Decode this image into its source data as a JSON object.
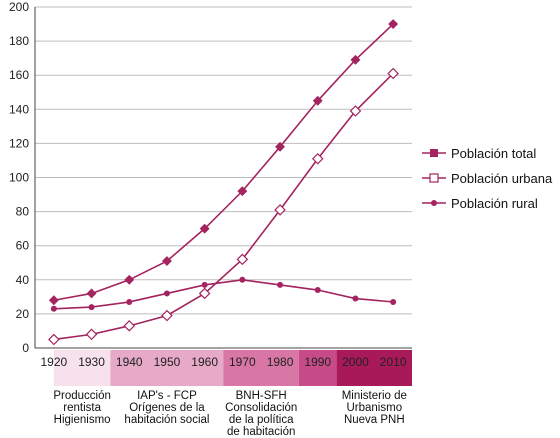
{
  "colors": {
    "series": "#a3245e",
    "bands": [
      "#f7e1ec",
      "#e6a9c7",
      "#d877a6",
      "#c84b89",
      "#a8195a"
    ]
  },
  "chart_data": {
    "type": "line",
    "x": [
      1920,
      1930,
      1940,
      1950,
      1960,
      1970,
      1980,
      1990,
      2000,
      2010
    ],
    "x_tick_labels": [
      "1920",
      "1930",
      "1940",
      "1950",
      "1960",
      "1970",
      "1980",
      "1990",
      "2000",
      "2010"
    ],
    "ylim": [
      0,
      200
    ],
    "y_ticks": [
      0,
      20,
      40,
      60,
      80,
      100,
      120,
      140,
      160,
      180,
      200
    ],
    "grid": "horizontal",
    "legend_position": "right",
    "series": [
      {
        "name": "Población total",
        "marker": "filled-square",
        "values": [
          28,
          32,
          40,
          51,
          70,
          92,
          118,
          145,
          169,
          190
        ]
      },
      {
        "name": "Población urbana",
        "marker": "hollow-square",
        "values": [
          5,
          8,
          13,
          19,
          32,
          52,
          81,
          111,
          139,
          161
        ]
      },
      {
        "name": "Población rural",
        "marker": "filled-dot",
        "values": [
          23,
          24,
          27,
          32,
          37,
          40,
          37,
          34,
          29,
          27
        ]
      }
    ],
    "periods": [
      {
        "lines": [
          "Producción",
          "rentista",
          "Higienismo"
        ],
        "from": 1920,
        "to": 1935
      },
      {
        "lines": [
          "IAP's - FCP",
          "Orígenes de la",
          "habitación social"
        ],
        "from": 1935,
        "to": 1965
      },
      {
        "lines": [
          "BNH-SFH",
          "Consolidación",
          "de la política",
          "de habitación"
        ],
        "from": 1965,
        "to": 1985
      },
      {
        "lines": [],
        "from": 1985,
        "to": 1995
      },
      {
        "lines": [
          "Ministerio de",
          "Urbanismo",
          "Nueva PNH"
        ],
        "from": 1995,
        "to": 2015
      }
    ]
  }
}
